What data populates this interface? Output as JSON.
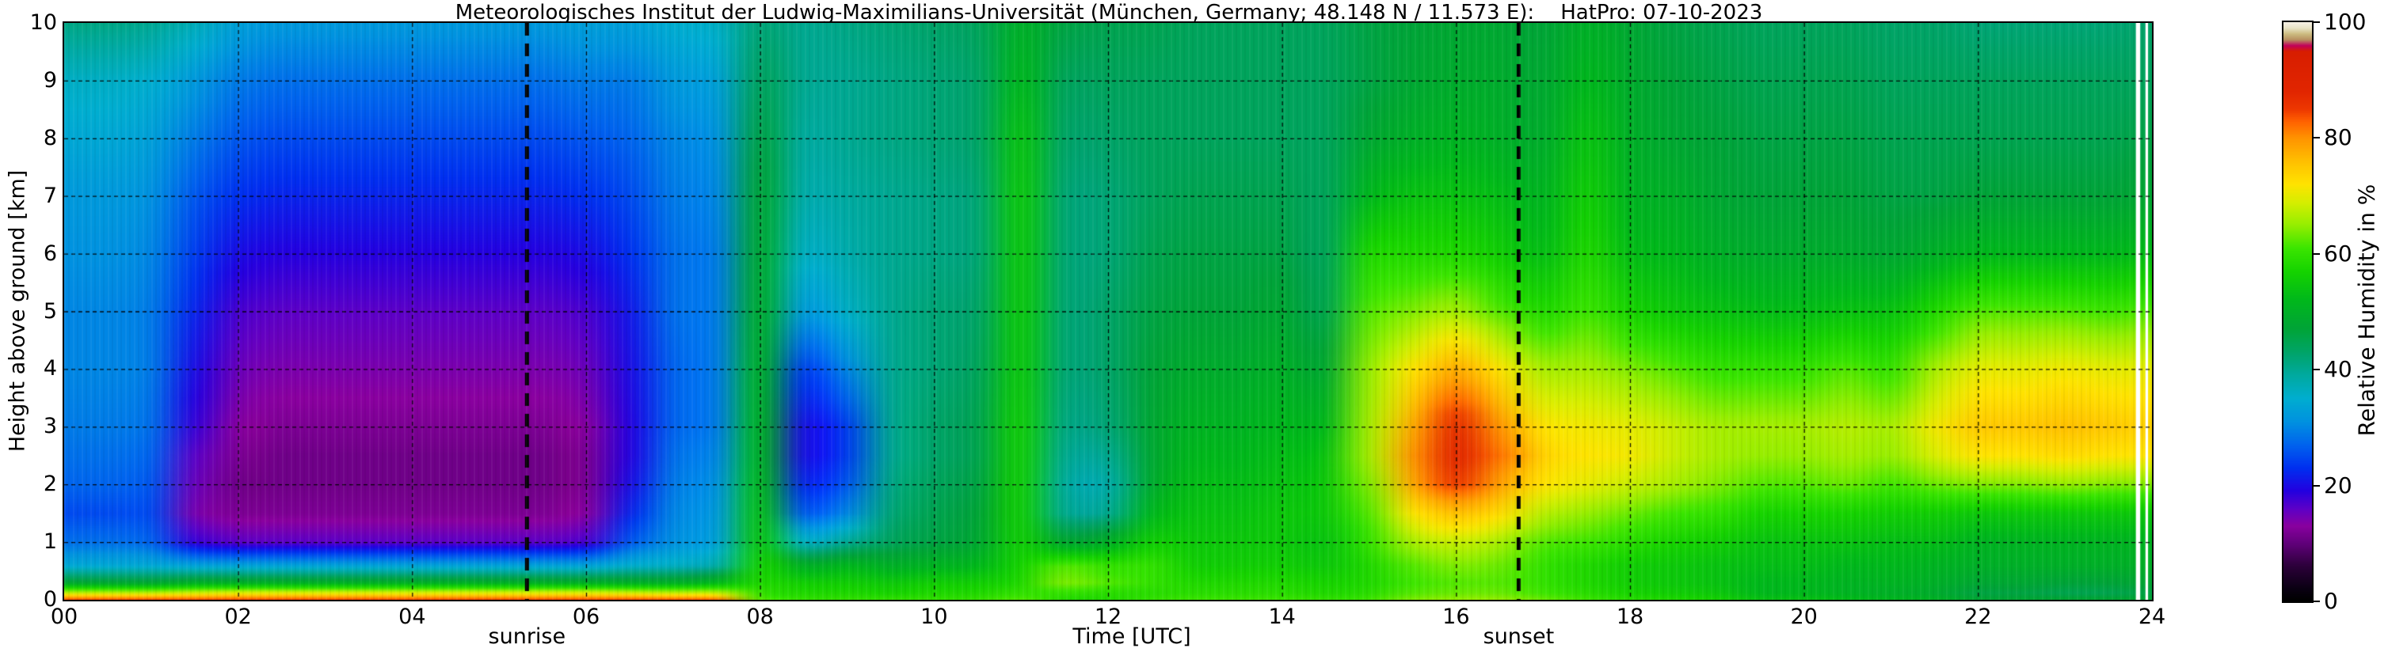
{
  "title": "Meteorologisches Institut der Ludwig-Maximilians-Universität (München, Germany; 48.148 N / 11.573 E):    HatPro: 07-10-2023",
  "axes": {
    "x_label": "Time [UTC]",
    "y_label": "Height above ground [km]",
    "x_tick_hours": [
      0,
      2,
      4,
      6,
      8,
      10,
      12,
      14,
      16,
      18,
      20,
      22,
      24
    ],
    "x_tick_labels": [
      "00",
      "02",
      "04",
      "06",
      "08",
      "10",
      "12",
      "14",
      "16",
      "18",
      "20",
      "22",
      "24"
    ],
    "y_tick_km": [
      0,
      1,
      2,
      3,
      4,
      5,
      6,
      7,
      8,
      9,
      10
    ],
    "y_tick_labels": [
      "0",
      "1",
      "2",
      "3",
      "4",
      "5",
      "6",
      "7",
      "8",
      "9",
      "10"
    ]
  },
  "annotations": {
    "sunrise": {
      "label": "sunrise",
      "time_hours": 5.32
    },
    "sunset": {
      "label": "sunset",
      "time_hours": 16.72
    }
  },
  "colorbar": {
    "label": "Relative Humidity in %",
    "tick_values": [
      0,
      20,
      40,
      60,
      80,
      100
    ],
    "tick_labels": [
      "0",
      "20",
      "40",
      "60",
      "80",
      "100"
    ]
  },
  "chart_data": {
    "type": "heatmap",
    "title": "Meteorologisches Institut der Ludwig-Maximilians-Universität (München, Germany; 48.148 N / 11.573 E):    HatPro: 07-10-2023",
    "xlabel": "Time [UTC]",
    "ylabel": "Height above ground [km]",
    "value_name": "Relative Humidity in %",
    "x_range_hours": [
      0,
      24
    ],
    "y_range_km": [
      0,
      10
    ],
    "value_range": [
      0,
      100
    ],
    "grid": "dashed black, x every 2 h, y every 1 km",
    "legend_position": "colorbar right",
    "sunrise_line_hours": 5.32,
    "sunset_line_hours": 16.72,
    "data_gaps": [
      {
        "time_hours": 23.84,
        "width_hours": 0.05
      },
      {
        "time_hours": 23.94,
        "width_hours": 0.03
      }
    ],
    "times_hours": [
      0,
      0.5,
      1,
      1.5,
      2,
      2.5,
      3,
      3.5,
      4,
      4.5,
      5,
      5.5,
      6,
      6.5,
      7,
      7.5,
      8,
      8.5,
      9,
      9.5,
      10,
      10.5,
      11,
      11.5,
      12,
      12.5,
      13,
      13.5,
      14,
      14.5,
      15,
      15.5,
      16,
      16.5,
      17,
      17.5,
      18,
      18.5,
      19,
      19.5,
      20,
      20.5,
      21,
      21.5,
      22,
      22.5,
      23,
      23.5,
      24
    ],
    "heights_km": [
      10,
      9,
      8,
      7,
      6,
      5,
      4,
      3,
      2.5,
      2,
      1.5,
      1,
      0.6,
      0.3,
      0.12,
      0
    ],
    "rh_percent_columns": [
      [
        41,
        36,
        34,
        32,
        31,
        30,
        30,
        29,
        28,
        27,
        25,
        28,
        34,
        48,
        68,
        86
      ],
      [
        41,
        36,
        34,
        32,
        31,
        30,
        30,
        29,
        28,
        27,
        25,
        28,
        34,
        48,
        68,
        86
      ],
      [
        40,
        35,
        33,
        31,
        30,
        29,
        29,
        28,
        27,
        26,
        25,
        27,
        34,
        48,
        68,
        86
      ],
      [
        37,
        32,
        29,
        26,
        24,
        22,
        20,
        18,
        16,
        15,
        14,
        18,
        33,
        50,
        69,
        86
      ],
      [
        33,
        29,
        26,
        23,
        20,
        17,
        15,
        13,
        12,
        11,
        12,
        16,
        33,
        50,
        70,
        86
      ],
      [
        32,
        28,
        25,
        22,
        19,
        16,
        14,
        12,
        11,
        11,
        12,
        16,
        33,
        50,
        70,
        86
      ],
      [
        32,
        28,
        25,
        22,
        19,
        16,
        14,
        12,
        11,
        11,
        12,
        16,
        33,
        50,
        70,
        86
      ],
      [
        32,
        28,
        25,
        22,
        19,
        16,
        14,
        12,
        11,
        11,
        12,
        16,
        33,
        50,
        70,
        86
      ],
      [
        32,
        28,
        25,
        22,
        19,
        16,
        14,
        12,
        11,
        11,
        12,
        16,
        33,
        50,
        70,
        86
      ],
      [
        32,
        28,
        25,
        22,
        19,
        16,
        14,
        12,
        11,
        11,
        12,
        16,
        33,
        50,
        70,
        86
      ],
      [
        32,
        28,
        25,
        22,
        19,
        16,
        14,
        12,
        11,
        11,
        12,
        16,
        33,
        50,
        70,
        86
      ],
      [
        32,
        28,
        25,
        22,
        19,
        16,
        14,
        12,
        11,
        11,
        12,
        16,
        33,
        50,
        70,
        86
      ],
      [
        33,
        29,
        26,
        23,
        20,
        17,
        15,
        13,
        12,
        12,
        13,
        17,
        33,
        50,
        70,
        86
      ],
      [
        33,
        29,
        27,
        25,
        23,
        21,
        20,
        19,
        19,
        20,
        22,
        26,
        35,
        50,
        69,
        86
      ],
      [
        35,
        32,
        30,
        29,
        28,
        28,
        27,
        27,
        28,
        29,
        30,
        31,
        36,
        50,
        68,
        85
      ],
      [
        36,
        33,
        31,
        30,
        29,
        29,
        29,
        29,
        30,
        31,
        32,
        33,
        38,
        52,
        68,
        84
      ],
      [
        42,
        44,
        46,
        48,
        49,
        50,
        51,
        52,
        52,
        53,
        54,
        55,
        57,
        58,
        60,
        62
      ],
      [
        40,
        40,
        39,
        38,
        36,
        32,
        24,
        20,
        20,
        22,
        26,
        36,
        50,
        56,
        58,
        60
      ],
      [
        41,
        40,
        40,
        39,
        38,
        36,
        30,
        24,
        24,
        26,
        30,
        40,
        52,
        56,
        58,
        60
      ],
      [
        42,
        41,
        41,
        40,
        40,
        40,
        40,
        40,
        40,
        41,
        42,
        44,
        50,
        55,
        57,
        60
      ],
      [
        43,
        42,
        42,
        41,
        41,
        42,
        42,
        43,
        43,
        44,
        45,
        46,
        51,
        56,
        58,
        60
      ],
      [
        44,
        43,
        43,
        42,
        42,
        43,
        44,
        45,
        45,
        46,
        47,
        48,
        52,
        56,
        58,
        60
      ],
      [
        50,
        52,
        54,
        55,
        55,
        55,
        55,
        56,
        56,
        56,
        56,
        56,
        57,
        58,
        60,
        62
      ],
      [
        46,
        44,
        43,
        42,
        42,
        42,
        42,
        41,
        40,
        39,
        40,
        48,
        62,
        64,
        60,
        58
      ],
      [
        45,
        44,
        43,
        42,
        42,
        43,
        43,
        42,
        40,
        38,
        40,
        50,
        60,
        62,
        59,
        58
      ],
      [
        45,
        44,
        44,
        44,
        45,
        46,
        47,
        48,
        48,
        49,
        52,
        56,
        60,
        60,
        59,
        60
      ],
      [
        44,
        44,
        44,
        45,
        46,
        47,
        49,
        51,
        52,
        53,
        54,
        55,
        56,
        58,
        59,
        61
      ],
      [
        44,
        44,
        44,
        45,
        46,
        47,
        49,
        51,
        52,
        53,
        54,
        55,
        56,
        58,
        59,
        61
      ],
      [
        44,
        44,
        44,
        45,
        46,
        48,
        50,
        52,
        53,
        54,
        55,
        55,
        56,
        58,
        59,
        61
      ],
      [
        44,
        44,
        44,
        44,
        44,
        45,
        48,
        52,
        54,
        55,
        55,
        54,
        55,
        57,
        58,
        60
      ],
      [
        46,
        46,
        48,
        52,
        58,
        62,
        65,
        66,
        66,
        64,
        62,
        60,
        58,
        58,
        59,
        61
      ],
      [
        47,
        48,
        50,
        54,
        58,
        64,
        72,
        78,
        80,
        78,
        72,
        66,
        62,
        61,
        62,
        64
      ],
      [
        48,
        49,
        51,
        54,
        58,
        66,
        78,
        87,
        89,
        85,
        76,
        68,
        64,
        62,
        63,
        65
      ],
      [
        48,
        49,
        50,
        53,
        56,
        62,
        72,
        80,
        82,
        79,
        73,
        66,
        63,
        62,
        63,
        65
      ],
      [
        47,
        48,
        49,
        51,
        53,
        58,
        66,
        72,
        74,
        72,
        67,
        62,
        60,
        60,
        61,
        63
      ],
      [
        50,
        52,
        54,
        56,
        58,
        61,
        66,
        71,
        72,
        70,
        65,
        61,
        58,
        58,
        59,
        61
      ],
      [
        48,
        49,
        50,
        51,
        53,
        57,
        64,
        70,
        71,
        68,
        63,
        59,
        56,
        56,
        57,
        59
      ],
      [
        46,
        47,
        48,
        50,
        52,
        55,
        62,
        68,
        68,
        66,
        61,
        57,
        55,
        55,
        56,
        58
      ],
      [
        45,
        46,
        47,
        48,
        50,
        54,
        60,
        66,
        66,
        64,
        60,
        56,
        54,
        54,
        55,
        57
      ],
      [
        44,
        45,
        46,
        47,
        49,
        53,
        60,
        66,
        65,
        62,
        57,
        54,
        53,
        52,
        52,
        54
      ],
      [
        44,
        45,
        46,
        47,
        49,
        53,
        60,
        66,
        65,
        62,
        57,
        54,
        53,
        52,
        52,
        54
      ],
      [
        44,
        45,
        46,
        47,
        49,
        54,
        62,
        67,
        66,
        63,
        57,
        54,
        52,
        51,
        51,
        53
      ],
      [
        43,
        44,
        45,
        46,
        48,
        54,
        60,
        66,
        65,
        61,
        56,
        53,
        52,
        51,
        50,
        52
      ],
      [
        43,
        44,
        45,
        46,
        50,
        58,
        66,
        71,
        69,
        63,
        56,
        53,
        51,
        50,
        49,
        51
      ],
      [
        42,
        44,
        45,
        47,
        52,
        62,
        70,
        75,
        72,
        64,
        55,
        51,
        50,
        48,
        46,
        48
      ],
      [
        42,
        44,
        45,
        47,
        52,
        62,
        70,
        75,
        72,
        64,
        55,
        51,
        50,
        48,
        46,
        48
      ],
      [
        42,
        44,
        45,
        47,
        52,
        62,
        71,
        76,
        73,
        65,
        55,
        51,
        50,
        47,
        45,
        48
      ],
      [
        42,
        44,
        45,
        47,
        52,
        61,
        70,
        75,
        72,
        64,
        55,
        51,
        50,
        47,
        45,
        48
      ],
      [
        43,
        44,
        46,
        48,
        53,
        62,
        70,
        74,
        72,
        64,
        55,
        51,
        50,
        48,
        46,
        48
      ]
    ],
    "colormap_stops": [
      [
        0,
        "#000000"
      ],
      [
        2,
        "#0a0012"
      ],
      [
        6,
        "#2c003a"
      ],
      [
        10,
        "#62007c"
      ],
      [
        13,
        "#8a00a0"
      ],
      [
        16,
        "#5c00c8"
      ],
      [
        19,
        "#2400e0"
      ],
      [
        23,
        "#0030f0"
      ],
      [
        27,
        "#0064ee"
      ],
      [
        31,
        "#0092e0"
      ],
      [
        35,
        "#00aed0"
      ],
      [
        39,
        "#00aaa0"
      ],
      [
        43,
        "#00a468"
      ],
      [
        47,
        "#00a438"
      ],
      [
        52,
        "#00b81c"
      ],
      [
        57,
        "#16d400"
      ],
      [
        61,
        "#3ce600"
      ],
      [
        65,
        "#96ee00"
      ],
      [
        69,
        "#d8ee00"
      ],
      [
        72,
        "#ffe400"
      ],
      [
        76,
        "#ffc000"
      ],
      [
        80,
        "#ff9400"
      ],
      [
        83,
        "#ff6000"
      ],
      [
        85,
        "#ee3800"
      ],
      [
        88,
        "#e22600"
      ],
      [
        95,
        "#d81e00"
      ],
      [
        96,
        "#c2005c"
      ],
      [
        97,
        "#b89060"
      ],
      [
        98,
        "#ccbc80"
      ],
      [
        99,
        "#e8e2c4"
      ],
      [
        100,
        "#f6f2e6"
      ]
    ]
  }
}
